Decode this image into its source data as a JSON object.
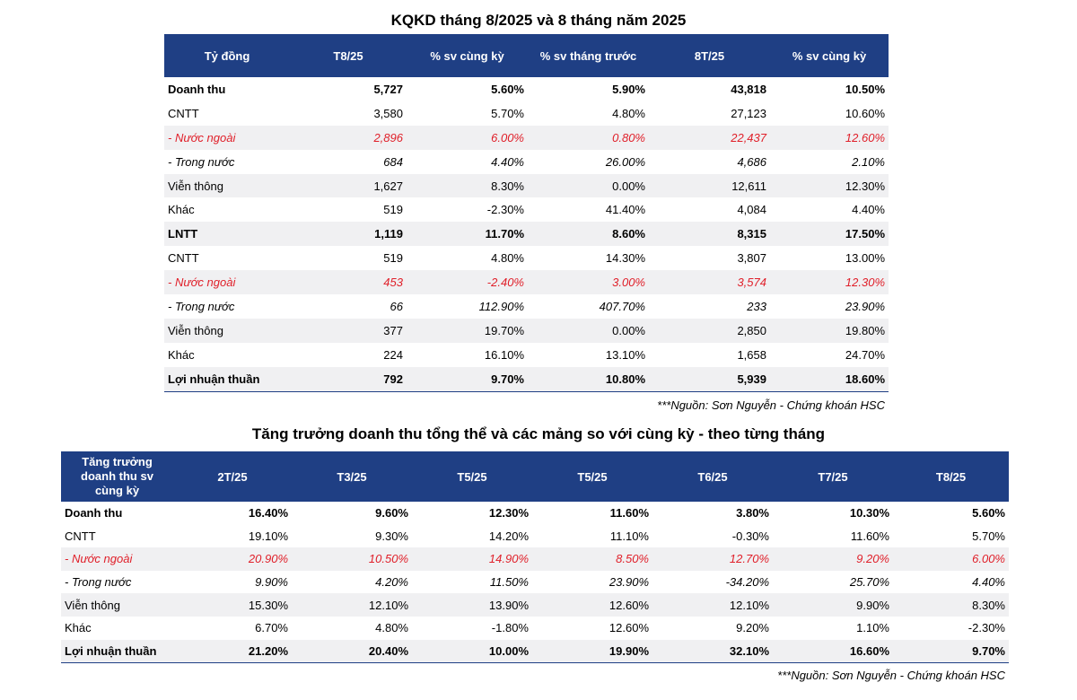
{
  "table1": {
    "title": "KQKD tháng 8/2025 và 8 tháng năm 2025",
    "headers": [
      "Tỷ đồng",
      "T8/25",
      "% sv cùng kỳ",
      "% sv tháng trước",
      "8T/25",
      "% sv cùng kỳ"
    ],
    "rows": [
      {
        "label": "Doanh thu",
        "cells": [
          "5,727",
          "5.60%",
          "5.90%",
          "43,818",
          "10.50%"
        ]
      },
      {
        "label": "CNTT",
        "cells": [
          "3,580",
          "5.70%",
          "4.80%",
          "27,123",
          "10.60%"
        ]
      },
      {
        "label": "- Nước ngoài",
        "cells": [
          "2,896",
          "6.00%",
          "0.80%",
          "22,437",
          "12.60%"
        ]
      },
      {
        "label": "- Trong nước",
        "cells": [
          "684",
          "4.40%",
          "26.00%",
          "4,686",
          "2.10%"
        ]
      },
      {
        "label": "Viễn thông",
        "cells": [
          "1,627",
          "8.30%",
          "0.00%",
          "12,611",
          "12.30%"
        ]
      },
      {
        "label": "Khác",
        "cells": [
          "519",
          "-2.30%",
          "41.40%",
          "4,084",
          "4.40%"
        ]
      },
      {
        "label": "LNTT",
        "cells": [
          "1,119",
          "11.70%",
          "8.60%",
          "8,315",
          "17.50%"
        ]
      },
      {
        "label": "CNTT",
        "cells": [
          "519",
          "4.80%",
          "14.30%",
          "3,807",
          "13.00%"
        ]
      },
      {
        "label": "- Nước ngoài",
        "cells": [
          "453",
          "-2.40%",
          "3.00%",
          "3,574",
          "12.30%"
        ]
      },
      {
        "label": "- Trong nước",
        "cells": [
          "66",
          "112.90%",
          "407.70%",
          "233",
          "23.90%"
        ]
      },
      {
        "label": "Viễn thông",
        "cells": [
          "377",
          "19.70%",
          "0.00%",
          "2,850",
          "19.80%"
        ]
      },
      {
        "label": "Khác",
        "cells": [
          "224",
          "16.10%",
          "13.10%",
          "1,658",
          "24.70%"
        ]
      },
      {
        "label": "Lợi nhuận thuần",
        "cells": [
          "792",
          "9.70%",
          "10.80%",
          "5,939",
          "18.60%"
        ]
      }
    ],
    "source": "***Nguồn: Sơn Nguyễn - Chứng khoán HSC"
  },
  "table2": {
    "title": "Tăng trưởng doanh thu tổng thể và các mảng so với cùng kỳ - theo từng tháng",
    "headers": [
      "Tăng trưởng doanh thu sv cùng kỳ",
      "2T/25",
      "T3/25",
      "T5/25",
      "T5/25",
      "T6/25",
      "T7/25",
      "T8/25"
    ],
    "rows": [
      {
        "label": "Doanh thu",
        "cells": [
          "16.40%",
          "9.60%",
          "12.30%",
          "11.60%",
          "3.80%",
          "10.30%",
          "5.60%"
        ]
      },
      {
        "label": "CNTT",
        "cells": [
          "19.10%",
          "9.30%",
          "14.20%",
          "11.10%",
          "-0.30%",
          "11.60%",
          "5.70%"
        ]
      },
      {
        "label": "- Nước ngoài",
        "cells": [
          "20.90%",
          "10.50%",
          "14.90%",
          "8.50%",
          "12.70%",
          "9.20%",
          "6.00%"
        ]
      },
      {
        "label": "- Trong nước",
        "cells": [
          "9.90%",
          "4.20%",
          "11.50%",
          "23.90%",
          "-34.20%",
          "25.70%",
          "4.40%"
        ]
      },
      {
        "label": "Viễn thông",
        "cells": [
          "15.30%",
          "12.10%",
          "13.90%",
          "12.60%",
          "12.10%",
          "9.90%",
          "8.30%"
        ]
      },
      {
        "label": "Khác",
        "cells": [
          "6.70%",
          "4.80%",
          "-1.80%",
          "12.60%",
          "9.20%",
          "1.10%",
          "-2.30%"
        ]
      },
      {
        "label": "Lợi nhuận thuần",
        "cells": [
          "21.20%",
          "20.40%",
          "10.00%",
          "19.90%",
          "32.10%",
          "16.60%",
          "9.70%"
        ]
      }
    ],
    "source": "***Nguồn: Sơn Nguyễn - Chứng khoán HSC"
  }
}
